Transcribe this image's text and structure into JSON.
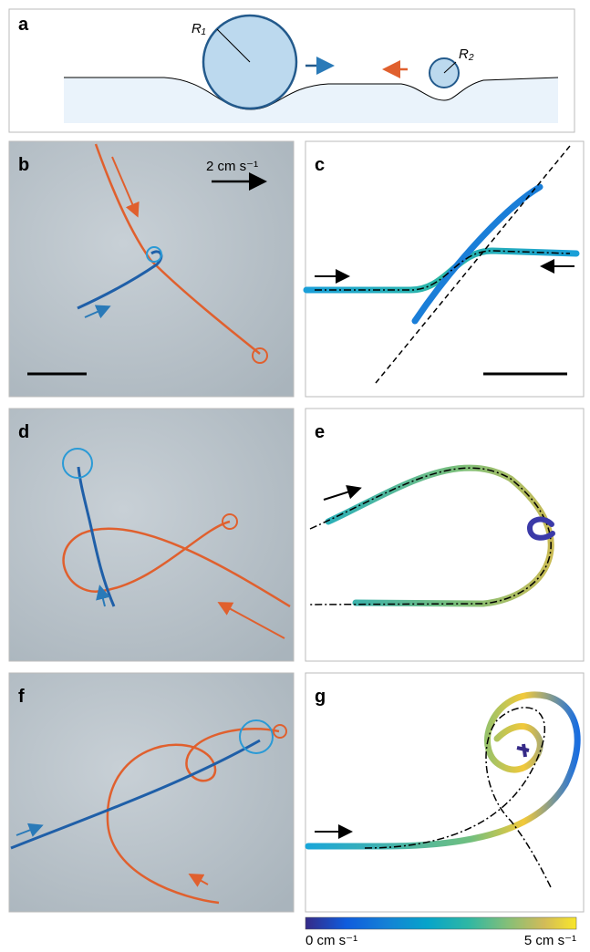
{
  "panels": {
    "a": {
      "label": "a",
      "r1": "R₁",
      "r2": "R₂"
    },
    "b": {
      "label": "b",
      "scale_label": "2 cm s⁻¹"
    },
    "c": {
      "label": "c"
    },
    "d": {
      "label": "d"
    },
    "e": {
      "label": "e"
    },
    "f": {
      "label": "f"
    },
    "g": {
      "label": "g"
    }
  },
  "colorbar": {
    "min_label": "0 cm s⁻¹",
    "max_label": "5 cm s⁻¹"
  }
}
